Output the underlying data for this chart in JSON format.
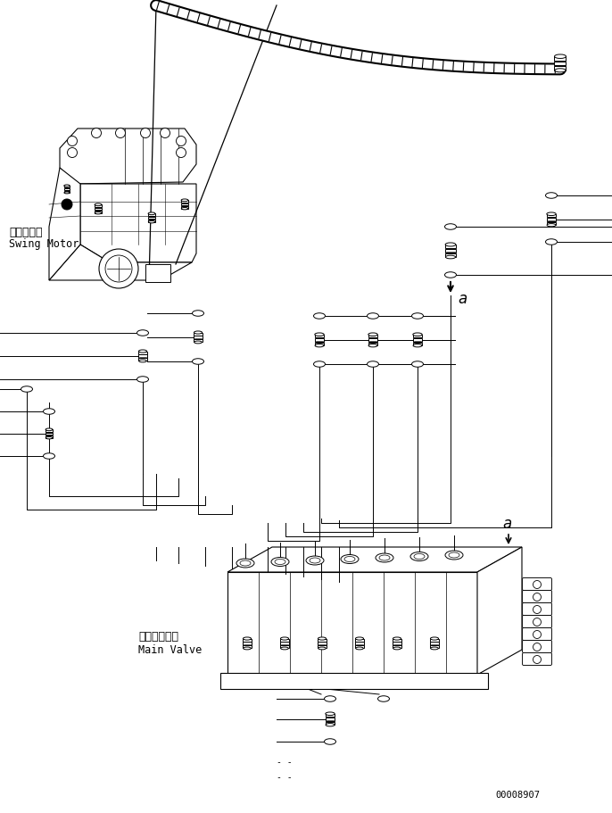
{
  "background_color": "#ffffff",
  "line_color": "#000000",
  "text_color": "#000000",
  "swing_motor_label_jp": "旋回モータ",
  "swing_motor_label_en": "Swing Motor",
  "main_valve_label_jp": "メインバルブ",
  "main_valve_label_en": "Main Valve",
  "label_a": "a",
  "part_number": "00008907"
}
